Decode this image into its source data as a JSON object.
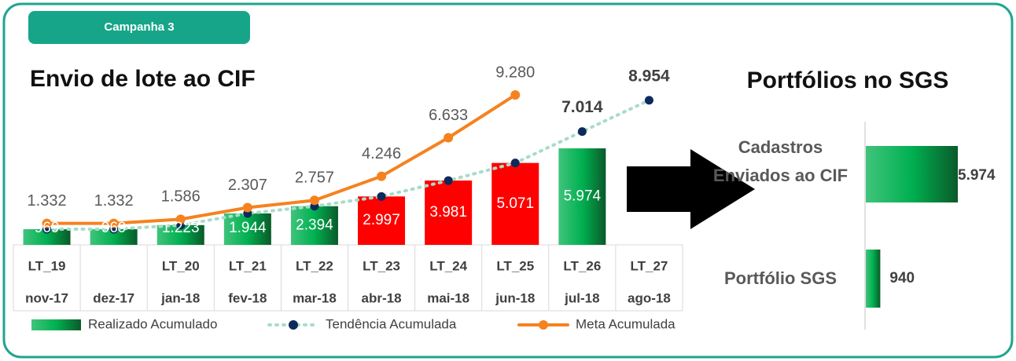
{
  "badge": "Campanha 3",
  "chart_data": [
    {
      "type": "bar",
      "title": "Envio de lote ao CIF",
      "lots": [
        "LT_19",
        null,
        "LT_20",
        "LT_21",
        "LT_22",
        "LT_23",
        "LT_24",
        "LT_25",
        "LT_26",
        "LT_27"
      ],
      "categories": [
        "nov-17",
        "dez-17",
        "jan-18",
        "fev-18",
        "mar-18",
        "abr-18",
        "mai-18",
        "jun-18",
        "jul-18",
        "ago-18"
      ],
      "series": [
        {
          "name": "Realizado Acumulado",
          "type": "bar",
          "color": "#00b050",
          "colors": [
            "#00b050",
            "#00b050",
            "#00b050",
            "#00b050",
            "#00b050",
            "#ff0000",
            "#ff0000",
            "#ff0000",
            "#00b050",
            null
          ],
          "values": [
            969,
            969,
            1223,
            1944,
            2394,
            2997,
            3981,
            5071,
            5974,
            null
          ],
          "value_labels": [
            "969",
            "969",
            "1.223",
            "1.944",
            "2.394",
            "2.997",
            "3.981",
            "5.071",
            "5.974",
            null
          ]
        },
        {
          "name": "Tendência Acumulada",
          "type": "dotted",
          "color": "#a8dcc8",
          "marker_color": "#0d2a5c",
          "values": [
            969,
            969,
            1223,
            1944,
            2394,
            2997,
            3981,
            5071,
            7014,
            8954
          ],
          "value_labels": [
            null,
            null,
            null,
            null,
            null,
            null,
            null,
            null,
            "7.014",
            "8.954"
          ]
        },
        {
          "name": "Meta Acumulada",
          "type": "line",
          "color": "#f5821f",
          "values": [
            1332,
            1332,
            1586,
            2307,
            2757,
            4246,
            6633,
            9280,
            null,
            null
          ],
          "value_labels": [
            "1.332",
            "1.332",
            "1.586",
            "2.307",
            "2.757",
            "4.246",
            "6.633",
            "9.280",
            null,
            null
          ]
        }
      ]
    },
    {
      "type": "barh",
      "title": "Portfólios no SGS",
      "categories": [
        "Cadastros Enviados ao CIF",
        "Portfólio SGS"
      ],
      "values": [
        5974,
        940
      ],
      "value_labels": [
        "5.974",
        "940"
      ],
      "color": "#00b050"
    }
  ]
}
